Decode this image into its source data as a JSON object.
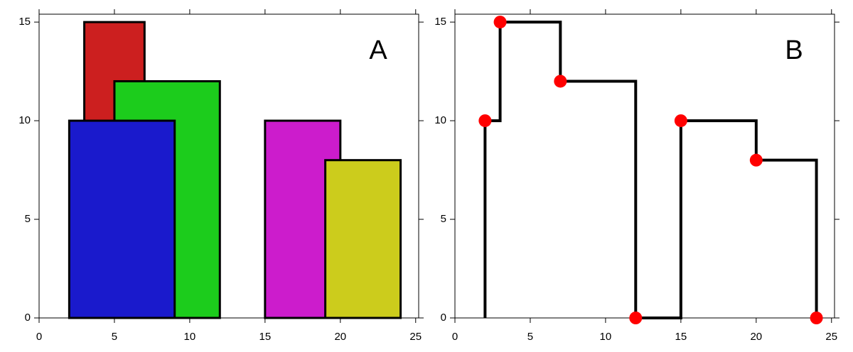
{
  "chart_data": [
    {
      "type": "bar",
      "label": "A",
      "bars": [
        {
          "left": 3,
          "right": 7,
          "height": 15,
          "color": "#cc1f1f"
        },
        {
          "left": 5,
          "right": 12,
          "height": 12,
          "color": "#1ccc1c"
        },
        {
          "left": 2,
          "right": 9,
          "height": 10,
          "color": "#1a1acc"
        },
        {
          "left": 15,
          "right": 20,
          "height": 10,
          "color": "#cc1ccc"
        },
        {
          "left": 19,
          "right": 24,
          "height": 8,
          "color": "#cccc1c"
        }
      ],
      "xlim": [
        0,
        25.2
      ],
      "ylim": [
        0,
        15.4
      ],
      "xticks": [
        0,
        5,
        10,
        15,
        20,
        25
      ],
      "yticks": [
        0,
        5,
        10,
        15
      ]
    },
    {
      "type": "line",
      "label": "B",
      "x": [
        2,
        3,
        7,
        12,
        15,
        20,
        24
      ],
      "values": [
        10,
        15,
        12,
        0,
        10,
        8,
        0
      ],
      "color": "#000000",
      "marker_color": "#ff0000",
      "xlim": [
        0,
        25.2
      ],
      "ylim": [
        0,
        15.4
      ],
      "xticks": [
        0,
        5,
        10,
        15,
        20,
        25
      ],
      "yticks": [
        0,
        5,
        10,
        15
      ]
    }
  ]
}
